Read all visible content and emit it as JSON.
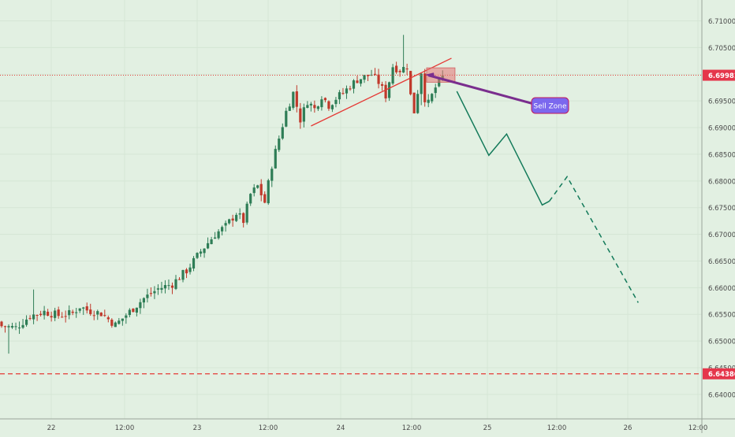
{
  "chart_data": {
    "type": "candlestick",
    "title": "",
    "x_ticks": [
      "22",
      "12:00",
      "23",
      "12:00",
      "24",
      "12:00",
      "25",
      "12:00",
      "26",
      "12:00"
    ],
    "y_ticks": [
      "6.71000",
      "6.70500",
      "6.70000",
      "6.69500",
      "6.69000",
      "6.68500",
      "6.68000",
      "6.67500",
      "6.67000",
      "6.66500",
      "6.66000",
      "6.65500",
      "6.65000",
      "6.64500",
      "6.64000"
    ],
    "ylim": [
      6.6395,
      6.7135
    ],
    "price_labels": {
      "current": {
        "text": "6.69981",
        "value": 6.69981,
        "color": "#e5364b"
      },
      "support": {
        "text": "6.64386",
        "value": 6.64386,
        "color": "#e5364b"
      }
    },
    "annotation": {
      "text": "Sell Zone",
      "color": "#7b68ee",
      "border": "#c2185b"
    },
    "colors": {
      "background": "#e2f0e2",
      "bull": "#2e7d56",
      "bear": "#c0392b",
      "wedge_line": "#e53935",
      "projection": "#137a5a",
      "sell_zone_fill": "#e57373",
      "arrow": "#7a2e8e"
    },
    "anchor_closes": [
      {
        "t": 0,
        "v": 6.6528
      },
      {
        "t": 4,
        "v": 6.6525
      },
      {
        "t": 8,
        "v": 6.6547
      },
      {
        "t": 12,
        "v": 6.6555
      },
      {
        "t": 16,
        "v": 6.6548
      },
      {
        "t": 20,
        "v": 6.6552
      },
      {
        "t": 22,
        "v": 6.6565
      },
      {
        "t": 24,
        "v": 6.6558
      },
      {
        "t": 28,
        "v": 6.6552
      },
      {
        "t": 32,
        "v": 6.653
      },
      {
        "t": 36,
        "v": 6.6555
      },
      {
        "t": 40,
        "v": 6.658
      },
      {
        "t": 44,
        "v": 6.6598
      },
      {
        "t": 48,
        "v": 6.6607
      },
      {
        "t": 52,
        "v": 6.6632
      },
      {
        "t": 56,
        "v": 6.6668
      },
      {
        "t": 60,
        "v": 6.67
      },
      {
        "t": 63,
        "v": 6.6715
      },
      {
        "t": 66,
        "v": 6.674
      },
      {
        "t": 68,
        "v": 6.6725
      },
      {
        "t": 70,
        "v": 6.6775
      },
      {
        "t": 72,
        "v": 6.679
      },
      {
        "t": 74,
        "v": 6.676
      },
      {
        "t": 76,
        "v": 6.683
      },
      {
        "t": 78,
        "v": 6.688
      },
      {
        "t": 80,
        "v": 6.693
      },
      {
        "t": 82,
        "v": 6.6965
      },
      {
        "t": 84,
        "v": 6.6915
      },
      {
        "t": 86,
        "v": 6.695
      },
      {
        "t": 88,
        "v": 6.6935
      },
      {
        "t": 90,
        "v": 6.696
      },
      {
        "t": 92,
        "v": 6.6942
      },
      {
        "t": 94,
        "v": 6.6955
      },
      {
        "t": 96,
        "v": 6.6965
      },
      {
        "t": 98,
        "v": 6.6978
      },
      {
        "t": 100,
        "v": 6.699
      },
      {
        "t": 102,
        "v": 6.6995
      },
      {
        "t": 104,
        "v": 6.7
      },
      {
        "t": 106,
        "v": 6.6985
      },
      {
        "t": 108,
        "v": 6.696
      },
      {
        "t": 110,
        "v": 6.7015
      },
      {
        "t": 112,
        "v": 6.7008
      },
      {
        "t": 114,
        "v": 6.7015
      },
      {
        "t": 115,
        "v": 6.696
      },
      {
        "t": 116,
        "v": 6.693
      },
      {
        "t": 118,
        "v": 6.7005
      },
      {
        "t": 119,
        "v": 6.6955
      },
      {
        "t": 120,
        "v": 6.6945
      },
      {
        "t": 122,
        "v": 6.6975
      },
      {
        "t": 124,
        "v": 6.6995
      }
    ],
    "projection": {
      "solid": [
        {
          "t": 128,
          "v": 6.6968
        },
        {
          "t": 137,
          "v": 6.6848
        },
        {
          "t": 142,
          "v": 6.6888
        },
        {
          "t": 152,
          "v": 6.6755
        },
        {
          "t": 154,
          "v": 6.6762
        }
      ],
      "dashed": [
        {
          "t": 154,
          "v": 6.6762
        },
        {
          "t": 159,
          "v": 6.6808
        },
        {
          "t": 179,
          "v": 6.6572
        }
      ]
    }
  }
}
